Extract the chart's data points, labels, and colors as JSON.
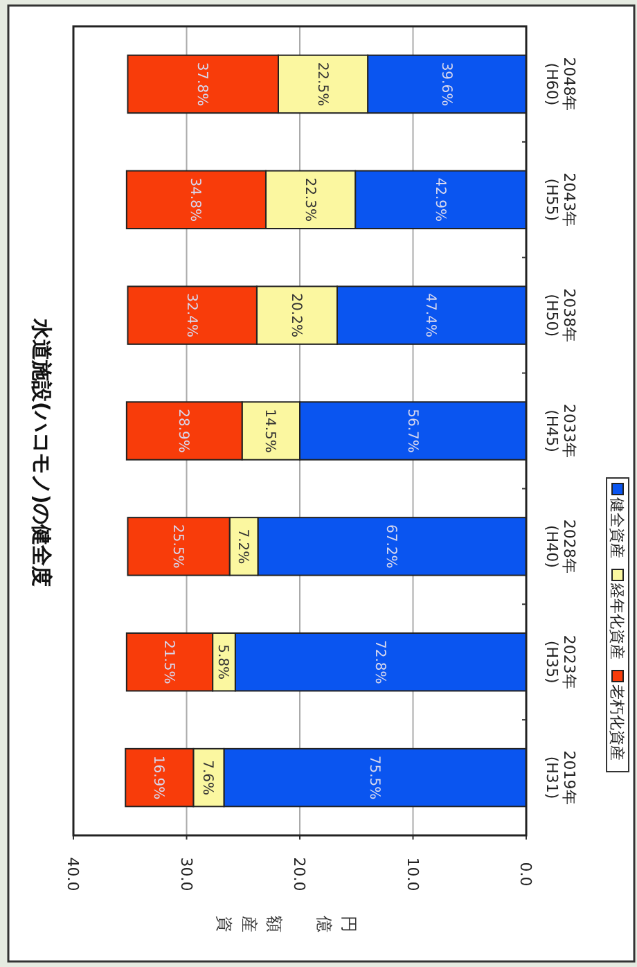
{
  "chart_data": {
    "type": "bar",
    "orientation": "horizontal",
    "stacked": true,
    "title": "水道施設(ハコモノ)の健全度",
    "xlabel": "資産額　億円",
    "categories": [
      "2048年\n(H60)",
      "2043年\n(H55)",
      "2038年\n(H50)",
      "2033年\n(H45)",
      "2028年\n(H40)",
      "2023年\n(H35)",
      "2019年\n(H31)"
    ],
    "series": [
      {
        "name": "健全資産",
        "color": "#0a55f0",
        "values": [
          14.0,
          15.1,
          16.7,
          20.0,
          23.7,
          25.7,
          26.7
        ]
      },
      {
        "name": "経年化資産",
        "color": "#fbf7a0",
        "values": [
          7.9,
          7.9,
          7.1,
          5.1,
          2.5,
          2.0,
          2.7
        ]
      },
      {
        "name": "老朽化資産",
        "color": "#f83c0a",
        "values": [
          13.3,
          12.3,
          11.4,
          10.2,
          9.0,
          7.6,
          6.0
        ]
      }
    ],
    "annotations": [
      "39.6%",
      "22.5%",
      "37.8%",
      "42.9%",
      "22.3%",
      "34.8%",
      "47.4%",
      "20.2%",
      "32.4%",
      "56.7%",
      "14.5%",
      "28.9%",
      "67.2%",
      "7.2%",
      "25.5%",
      "72.8%",
      "5.8%",
      "21.5%",
      "75.5%",
      "7.6%",
      "16.9%"
    ],
    "xlim": [
      40,
      0
    ],
    "xticks": [
      {
        "value": 40,
        "label": "40.0"
      },
      {
        "value": 30,
        "label": "30.0"
      },
      {
        "value": 20,
        "label": "20.0"
      },
      {
        "value": 10,
        "label": "10.0"
      },
      {
        "value": 0,
        "label": "0.0"
      }
    ],
    "grid": "x",
    "legend": "right"
  }
}
